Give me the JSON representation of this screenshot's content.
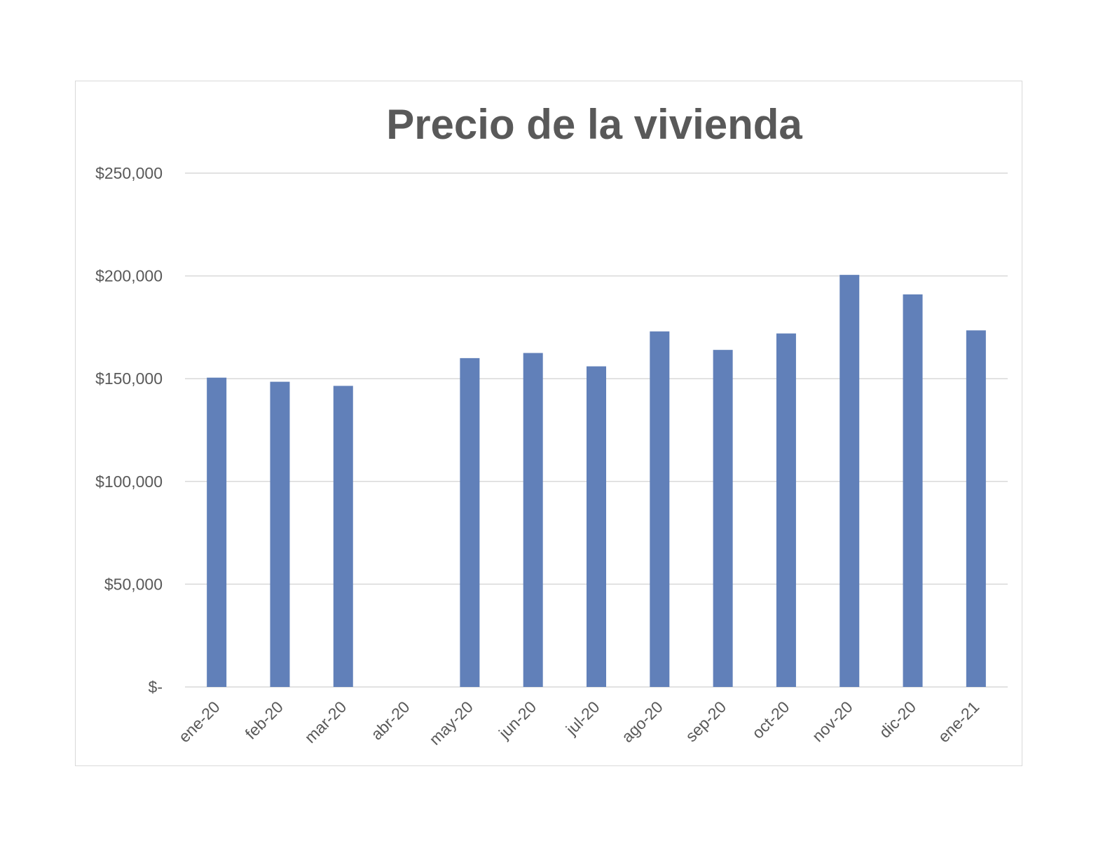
{
  "chart_data": {
    "type": "bar",
    "title": "Precio de la vivienda",
    "xlabel": "",
    "ylabel": "",
    "categories": [
      "ene-20",
      "feb-20",
      "mar-20",
      "abr-20",
      "may-20",
      "jun-20",
      "jul-20",
      "ago-20",
      "sep-20",
      "oct-20",
      "nov-20",
      "dic-20",
      "ene-21"
    ],
    "series": [
      {
        "values": [
          150500,
          148500,
          146500,
          null,
          160000,
          162500,
          156000,
          173000,
          164000,
          172000,
          200500,
          191000,
          173500
        ],
        "color": "#6180b9"
      }
    ],
    "ylim": [
      0,
      250000
    ],
    "yticks": [
      0,
      50000,
      100000,
      150000,
      200000,
      250000
    ],
    "ytick_labels": [
      "$-",
      "$50,000",
      "$100,000",
      "$150,000",
      "$200,000",
      "$250,000"
    ],
    "grid": true,
    "legend": "none"
  }
}
